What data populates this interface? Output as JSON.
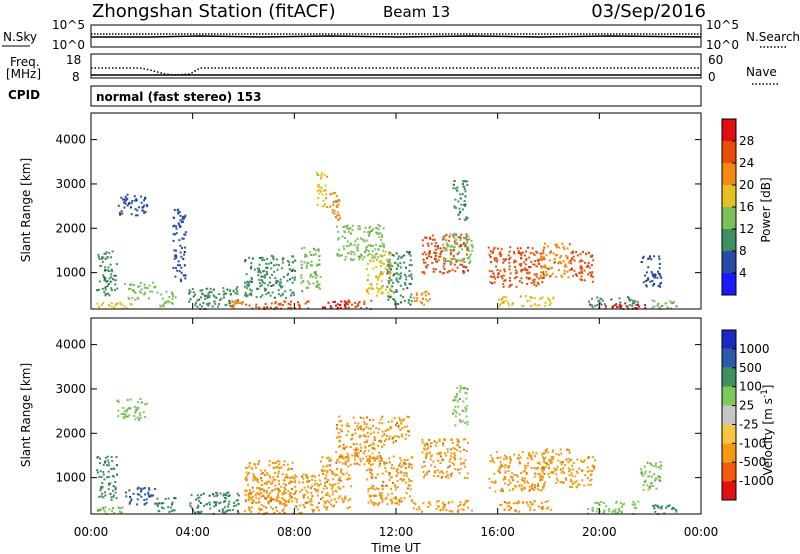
{
  "header": {
    "station": "Zhongshan Station (fitACF)",
    "beam": "Beam 13",
    "date": "03/Sep/2016"
  },
  "noise_panel": {
    "left_label": "N.Sky",
    "left_ticks": [
      "10^5",
      "10^0"
    ],
    "right_ticks": [
      "10^5",
      "10^0"
    ],
    "right_label": "N.Search"
  },
  "freq_panel": {
    "left_label_1": "Freq.",
    "left_label_2": "[MHz]",
    "left_ticks": [
      "18",
      "8"
    ],
    "right_ticks": [
      "60",
      "0"
    ],
    "right_label": "Nave"
  },
  "cpid": {
    "label": "CPID",
    "text": "normal (fast stereo) 153"
  },
  "colors": {
    "power": [
      "#1a1aff",
      "#2a4aa8",
      "#3f8f5f",
      "#7cc05a",
      "#e6c020",
      "#f28a10",
      "#e84b0a",
      "#e01010"
    ],
    "velocity": [
      "#e01010",
      "#f05a0a",
      "#f59a10",
      "#f6c640",
      "#c6c6c6",
      "#7cc85a",
      "#3f8f5f",
      "#2a5aa8",
      "#1a2ac0"
    ]
  },
  "chart_data": [
    {
      "type": "heatmap",
      "title": "",
      "xlabel": "Time UT",
      "ylabel": "Slant Range [km]",
      "xlim": [
        "00:00",
        "24:00"
      ],
      "ylim": [
        180,
        4600
      ],
      "x_ticks": [
        "00:00",
        "04:00",
        "08:00",
        "12:00",
        "16:00",
        "20:00",
        "00:00"
      ],
      "y_ticks": [
        1000,
        2000,
        3000,
        4000
      ],
      "colorbar_label": "Power [dB]",
      "colorbar_ticks": [
        4,
        8,
        12,
        16,
        20,
        24,
        28
      ],
      "colorbar_range": [
        0,
        32
      ],
      "patches": [
        {
          "t0": 0.2,
          "t1": 1.6,
          "r0": 200,
          "r1": 380,
          "value": 16
        },
        {
          "t0": 0.2,
          "t1": 1.0,
          "r0": 500,
          "r1": 1500,
          "value": 8
        },
        {
          "t0": 1.3,
          "t1": 2.5,
          "r0": 400,
          "r1": 800,
          "value": 12
        },
        {
          "t0": 1.0,
          "t1": 2.2,
          "r0": 2300,
          "r1": 2800,
          "value": 6
        },
        {
          "t0": 2.5,
          "t1": 3.3,
          "r0": 250,
          "r1": 600,
          "value": 12
        },
        {
          "t0": 3.2,
          "t1": 3.7,
          "r0": 800,
          "r1": 2500,
          "value": 6
        },
        {
          "t0": 3.8,
          "t1": 5.8,
          "r0": 200,
          "r1": 700,
          "value": 10
        },
        {
          "t0": 5.4,
          "t1": 6.0,
          "r0": 200,
          "r1": 400,
          "value": 20
        },
        {
          "t0": 6.0,
          "t1": 7.5,
          "r0": 200,
          "r1": 380,
          "value": 24
        },
        {
          "t0": 6.0,
          "t1": 8.0,
          "r0": 450,
          "r1": 1400,
          "value": 10
        },
        {
          "t0": 7.5,
          "t1": 8.6,
          "r0": 200,
          "r1": 380,
          "value": 26
        },
        {
          "t0": 8.2,
          "t1": 9.0,
          "r0": 600,
          "r1": 1600,
          "value": 14
        },
        {
          "t0": 8.8,
          "t1": 9.3,
          "r0": 2500,
          "r1": 3300,
          "value": 18
        },
        {
          "t0": 9.3,
          "t1": 9.8,
          "r0": 2200,
          "r1": 2900,
          "value": 22
        },
        {
          "t0": 9.0,
          "t1": 10.0,
          "r0": 200,
          "r1": 380,
          "value": 28
        },
        {
          "t0": 10.0,
          "t1": 11.0,
          "r0": 200,
          "r1": 400,
          "value": 24
        },
        {
          "t0": 9.6,
          "t1": 11.5,
          "r0": 1300,
          "r1": 2100,
          "value": 12
        },
        {
          "t0": 10.8,
          "t1": 11.8,
          "r0": 500,
          "r1": 1500,
          "value": 16
        },
        {
          "t0": 11.6,
          "t1": 12.6,
          "r0": 300,
          "r1": 1500,
          "value": 10
        },
        {
          "t0": 12.6,
          "t1": 13.3,
          "r0": 300,
          "r1": 600,
          "value": 22
        },
        {
          "t0": 13.0,
          "t1": 14.8,
          "r0": 1000,
          "r1": 1900,
          "value": 26
        },
        {
          "t0": 13.8,
          "t1": 15.0,
          "r0": 1200,
          "r1": 1900,
          "value": 14
        },
        {
          "t0": 14.2,
          "t1": 14.8,
          "r0": 2200,
          "r1": 3100,
          "value": 10
        },
        {
          "t0": 15.6,
          "t1": 17.8,
          "r0": 700,
          "r1": 1600,
          "value": 26
        },
        {
          "t0": 16.0,
          "t1": 18.2,
          "r0": 250,
          "r1": 500,
          "value": 16
        },
        {
          "t0": 17.6,
          "t1": 18.8,
          "r0": 900,
          "r1": 1700,
          "value": 20
        },
        {
          "t0": 18.8,
          "t1": 19.8,
          "r0": 800,
          "r1": 1500,
          "value": 26
        },
        {
          "t0": 19.5,
          "t1": 21.5,
          "r0": 200,
          "r1": 480,
          "value": 10
        },
        {
          "t0": 20.0,
          "t1": 21.8,
          "r0": 200,
          "r1": 330,
          "value": 28
        },
        {
          "t0": 21.6,
          "t1": 22.4,
          "r0": 700,
          "r1": 1400,
          "value": 6
        },
        {
          "t0": 22.0,
          "t1": 23.0,
          "r0": 200,
          "r1": 400,
          "value": 12
        }
      ]
    },
    {
      "type": "heatmap",
      "title": "",
      "xlabel": "Time UT",
      "ylabel": "Slant Range [km]",
      "xlim": [
        "00:00",
        "24:00"
      ],
      "ylim": [
        180,
        4600
      ],
      "x_ticks": [
        "00:00",
        "04:00",
        "08:00",
        "12:00",
        "16:00",
        "20:00",
        "00:00"
      ],
      "y_ticks": [
        1000,
        2000,
        3000,
        4000
      ],
      "colorbar_label": "Velocity [m s^-1]",
      "colorbar_ticks": [
        "1000",
        "500",
        "100",
        "25",
        "-25",
        "-100",
        "-500",
        "-1000"
      ],
      "patches": [
        {
          "t0": 0.2,
          "t1": 1.6,
          "r0": 200,
          "r1": 380,
          "value": 100
        },
        {
          "t0": 0.2,
          "t1": 1.0,
          "r0": 500,
          "r1": 1500,
          "value": 400
        },
        {
          "t0": 1.3,
          "t1": 2.5,
          "r0": 400,
          "r1": 800,
          "value": 600
        },
        {
          "t0": 1.0,
          "t1": 2.2,
          "r0": 2300,
          "r1": 2800,
          "value": 60
        },
        {
          "t0": 2.5,
          "t1": 3.3,
          "r0": 250,
          "r1": 600,
          "value": 200
        },
        {
          "t0": 3.8,
          "t1": 5.8,
          "r0": 200,
          "r1": 700,
          "value": 300
        },
        {
          "t0": 6.0,
          "t1": 7.5,
          "r0": 200,
          "r1": 800,
          "value": -200
        },
        {
          "t0": 6.0,
          "t1": 8.0,
          "r0": 450,
          "r1": 1400,
          "value": -150
        },
        {
          "t0": 7.5,
          "t1": 9.0,
          "r0": 200,
          "r1": 1100,
          "value": -300
        },
        {
          "t0": 9.0,
          "t1": 10.2,
          "r0": 300,
          "r1": 1500,
          "value": -250
        },
        {
          "t0": 9.6,
          "t1": 11.5,
          "r0": 1300,
          "r1": 2400,
          "value": -400
        },
        {
          "t0": 10.8,
          "t1": 12.6,
          "r0": 400,
          "r1": 1500,
          "value": -300
        },
        {
          "t0": 11.5,
          "t1": 12.5,
          "r0": 1800,
          "r1": 2400,
          "value": -450
        },
        {
          "t0": 13.0,
          "t1": 14.8,
          "r0": 1000,
          "r1": 1900,
          "value": -150
        },
        {
          "t0": 12.6,
          "t1": 15.0,
          "r0": 250,
          "r1": 500,
          "value": -200
        },
        {
          "t0": 14.2,
          "t1": 14.8,
          "r0": 2200,
          "r1": 3100,
          "value": 30
        },
        {
          "t0": 15.6,
          "t1": 17.8,
          "r0": 700,
          "r1": 1600,
          "value": -150
        },
        {
          "t0": 16.0,
          "t1": 18.2,
          "r0": 250,
          "r1": 500,
          "value": -120
        },
        {
          "t0": 17.6,
          "t1": 18.8,
          "r0": 900,
          "r1": 1700,
          "value": -140
        },
        {
          "t0": 18.8,
          "t1": 19.8,
          "r0": 800,
          "r1": 1500,
          "value": -100
        },
        {
          "t0": 19.5,
          "t1": 21.5,
          "r0": 200,
          "r1": 480,
          "value": 50
        },
        {
          "t0": 21.6,
          "t1": 22.4,
          "r0": 700,
          "r1": 1400,
          "value": 80
        },
        {
          "t0": 22.0,
          "t1": 23.0,
          "r0": 200,
          "r1": 400,
          "value": 200
        }
      ]
    }
  ]
}
